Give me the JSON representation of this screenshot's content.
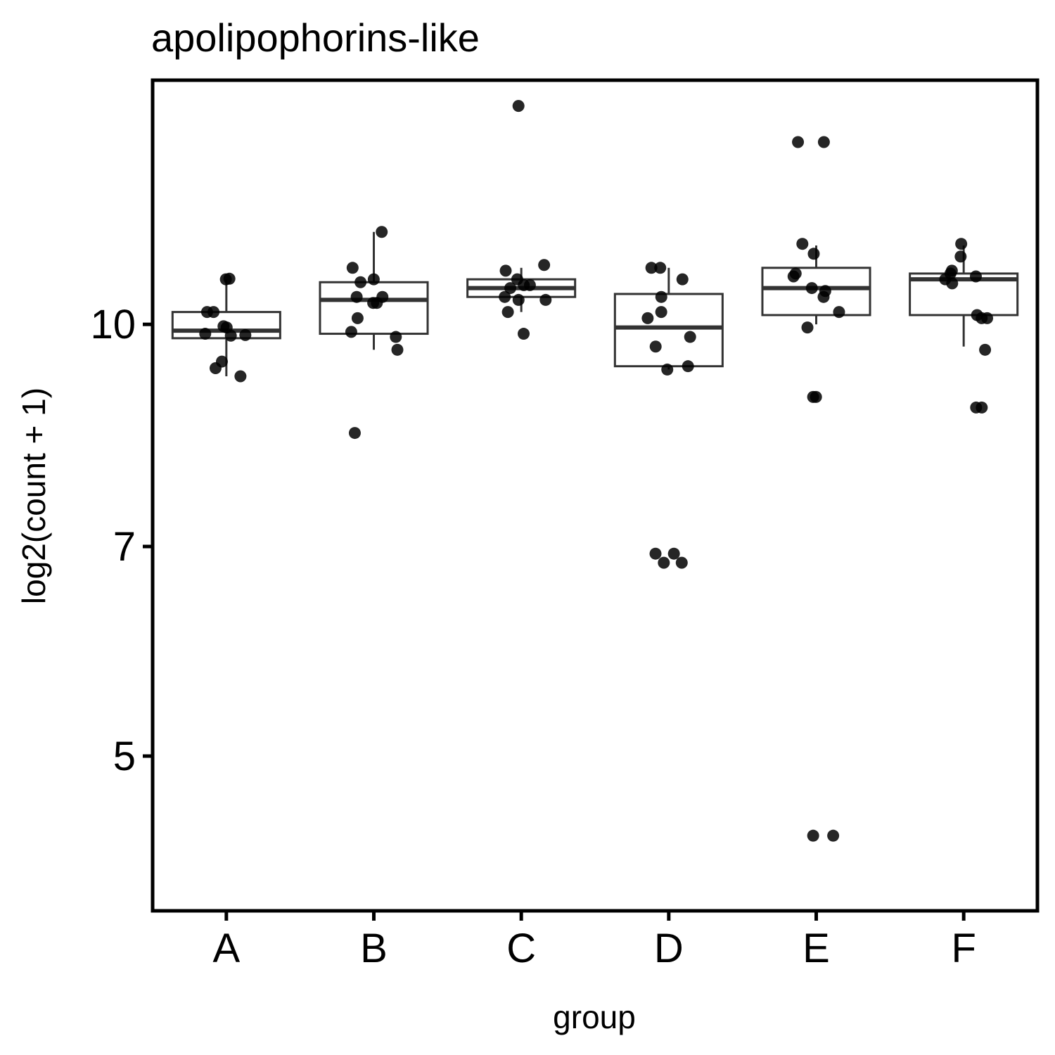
{
  "chart_data": {
    "type": "box",
    "title": "apolipophorins-like",
    "xlabel": "group",
    "ylabel": "log2(count + 1)",
    "y_scale": "log",
    "ylim": [
      3.9,
      14.8
    ],
    "yticks": [
      5,
      7,
      10
    ],
    "categories": [
      "A",
      "B",
      "C",
      "D",
      "E",
      "F"
    ],
    "grid": false,
    "boxes": [
      {
        "category": "A",
        "whisker_low": 9.2,
        "q1": 9.78,
        "median": 9.9,
        "q3": 10.2,
        "whisker_high": 10.75
      },
      {
        "category": "B",
        "whisker_low": 9.6,
        "q1": 9.85,
        "median": 10.4,
        "q3": 10.7,
        "whisker_high": 11.6
      },
      {
        "category": "C",
        "whisker_low": 10.2,
        "q1": 10.45,
        "median": 10.6,
        "q3": 10.75,
        "whisker_high": 10.95
      },
      {
        "category": "D",
        "whisker_low": 9.3,
        "q1": 9.35,
        "median": 9.95,
        "q3": 10.5,
        "whisker_high": 10.95
      },
      {
        "category": "E",
        "whisker_low": 10.0,
        "q1": 10.15,
        "median": 10.6,
        "q3": 10.95,
        "whisker_high": 11.35
      },
      {
        "category": "F",
        "whisker_low": 9.65,
        "q1": 10.15,
        "median": 10.75,
        "q3": 10.85,
        "whisker_high": 11.35
      }
    ],
    "points": [
      {
        "category": "A",
        "values": [
          10.75,
          10.76,
          10.2,
          10.2,
          9.97,
          9.95,
          9.85,
          9.83,
          9.82,
          9.42,
          9.32,
          9.2
        ]
      },
      {
        "category": "B",
        "values": [
          11.6,
          10.95,
          10.75,
          10.7,
          10.45,
          10.45,
          10.35,
          10.35,
          10.1,
          9.88,
          9.8,
          9.6,
          8.4
        ]
      },
      {
        "category": "C",
        "values": [
          14.2,
          11.0,
          10.9,
          10.75,
          10.65,
          10.65,
          10.6,
          10.45,
          10.4,
          10.4,
          10.2,
          9.85
        ]
      },
      {
        "category": "D",
        "values": [
          10.95,
          10.95,
          10.75,
          10.45,
          10.2,
          10.1,
          9.8,
          9.65,
          9.35,
          9.3,
          6.92,
          6.92,
          6.82,
          6.82
        ]
      },
      {
        "category": "E",
        "values": [
          13.4,
          13.4,
          11.38,
          11.2,
          10.85,
          10.8,
          10.6,
          10.55,
          10.45,
          10.2,
          9.95,
          8.9,
          8.9,
          4.4,
          4.4
        ]
      },
      {
        "category": "F",
        "values": [
          11.38,
          11.15,
          10.9,
          10.85,
          10.8,
          10.75,
          10.68,
          10.15,
          10.1,
          10.1,
          9.6,
          8.75,
          8.75
        ]
      }
    ]
  },
  "colors": {
    "background": "#ffffff",
    "panel_border": "#000000",
    "box_stroke": "#333333",
    "point": "#000000"
  }
}
